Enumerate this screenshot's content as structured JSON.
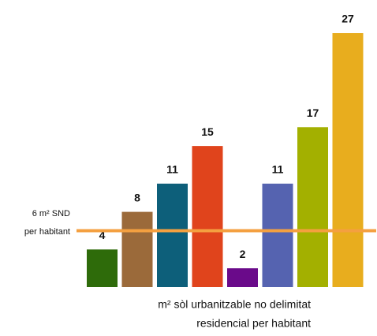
{
  "chart_data": {
    "type": "bar",
    "categories": [
      null,
      null,
      null,
      null,
      null,
      null,
      null,
      null
    ],
    "values": [
      4,
      8,
      11,
      15,
      2,
      11,
      17,
      27
    ],
    "colors": [
      "#2e6b0a",
      "#9b6a3a",
      "#0d5f7a",
      "#e0441c",
      "#6a0a8a",
      "#5563b0",
      "#a3b000",
      "#e8ad1e"
    ],
    "x_label": [
      "m² sòl urbanitzable no delimitat",
      "residencial per habitant"
    ],
    "reference_line": {
      "value": 6,
      "color": "#f4a040",
      "label": [
        "6 m² SND",
        "per habitant"
      ]
    }
  }
}
